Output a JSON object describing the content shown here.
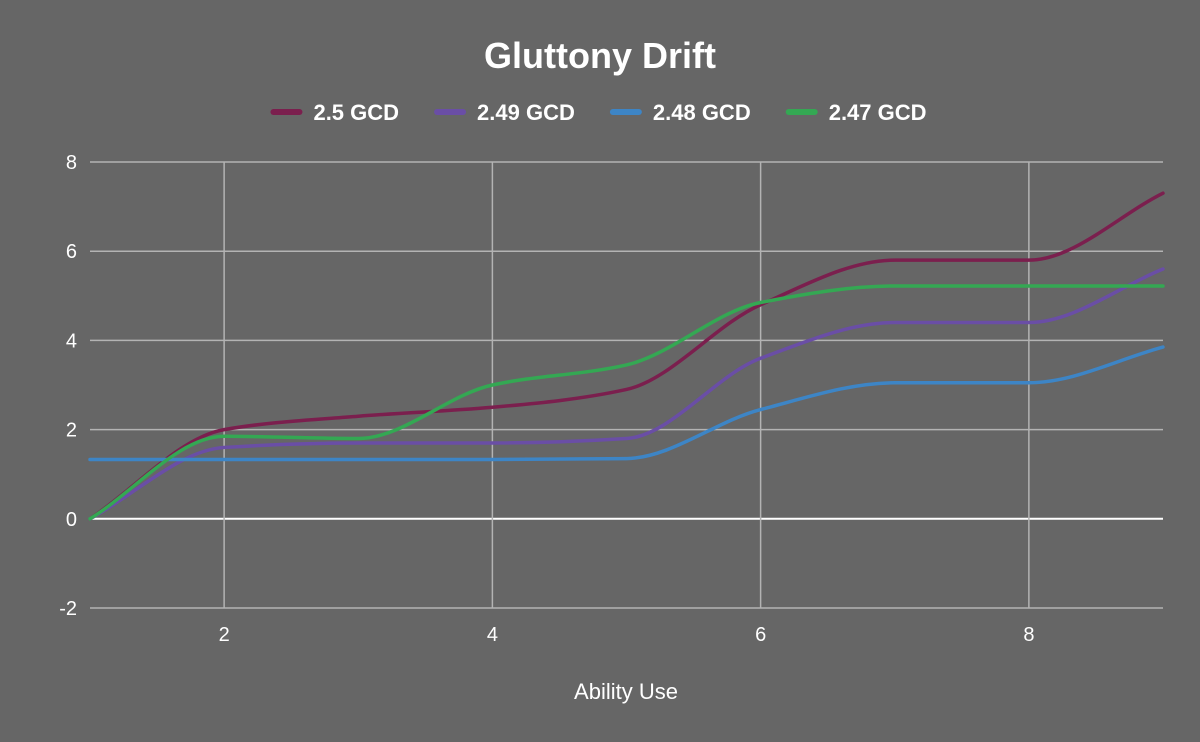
{
  "chart_data": {
    "type": "line",
    "title": "Gluttony Drift",
    "xlabel": "Ability Use",
    "ylabel": "",
    "xlim": [
      1,
      9
    ],
    "ylim": [
      -2,
      8
    ],
    "x_ticks": [
      "2",
      "4",
      "6",
      "8"
    ],
    "y_ticks": [
      "-2",
      "0",
      "2",
      "4",
      "6",
      "8"
    ],
    "grid": true,
    "legend_position": "top",
    "x": [
      1,
      2,
      3,
      4,
      5,
      6,
      7,
      8,
      9
    ],
    "series": [
      {
        "name": "2.5 GCD",
        "color": "#7b1f4e",
        "values": [
          0,
          2.0,
          2.3,
          2.5,
          2.9,
          4.8,
          5.8,
          5.8,
          7.3
        ]
      },
      {
        "name": "2.49 GCD",
        "color": "#6a4ea6",
        "values": [
          0,
          1.6,
          1.7,
          1.7,
          1.8,
          3.6,
          4.4,
          4.4,
          5.6
        ]
      },
      {
        "name": "2.48 GCD",
        "color": "#3d85c6",
        "values": [
          1.33,
          1.33,
          1.33,
          1.33,
          1.35,
          2.45,
          3.05,
          3.05,
          3.85
        ]
      },
      {
        "name": "2.47 GCD",
        "color": "#34a853",
        "values": [
          0,
          1.85,
          1.8,
          3.0,
          3.45,
          4.85,
          5.22,
          5.22,
          5.22
        ]
      }
    ]
  }
}
